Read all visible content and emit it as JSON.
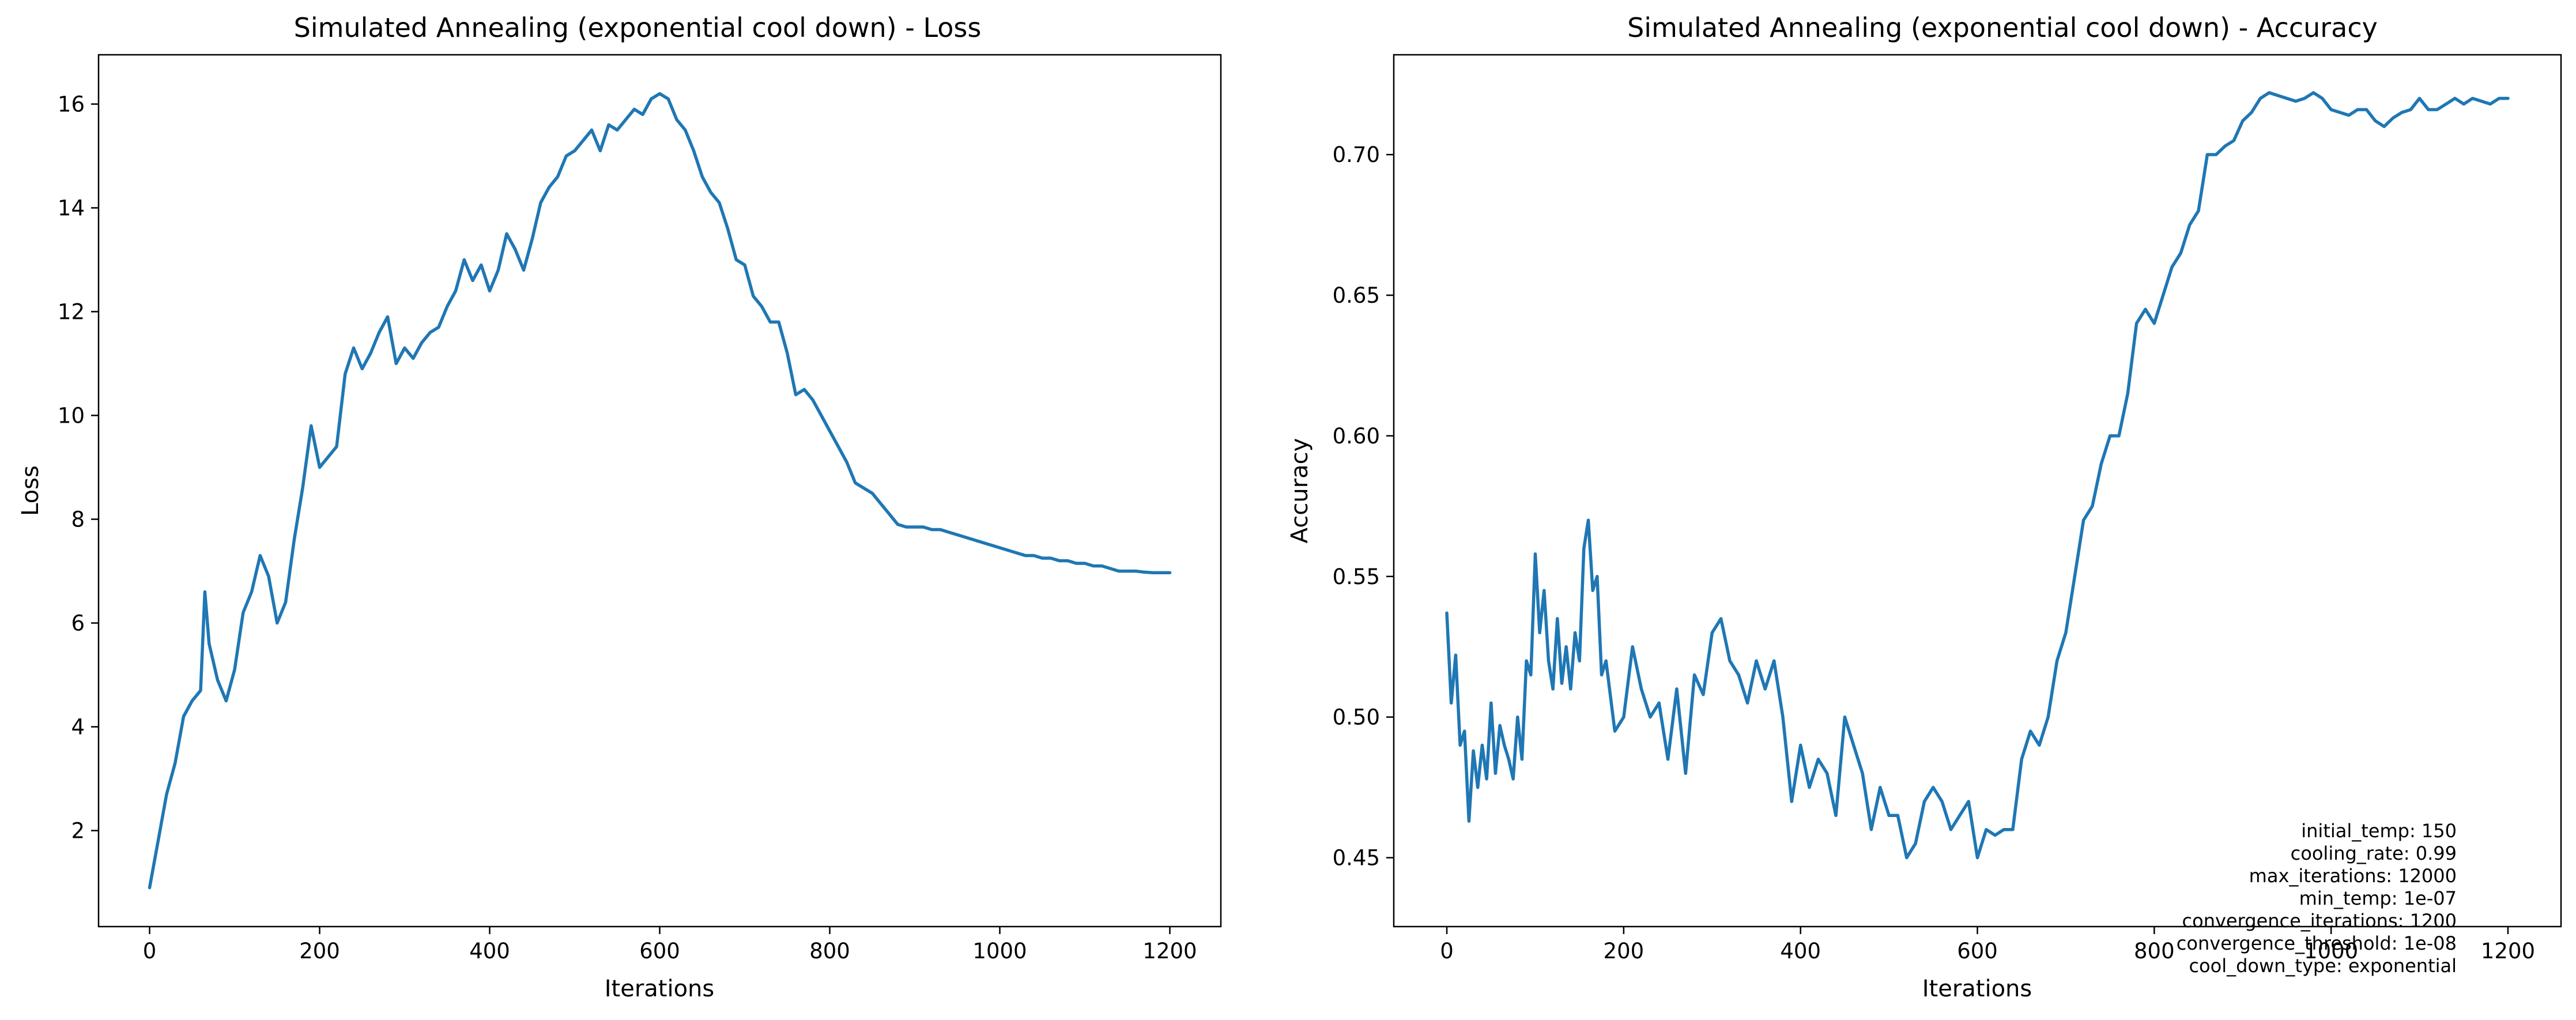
{
  "figure": {
    "annotation_lines": [
      "initial_temp: 150",
      "cooling_rate: 0.99",
      "max_iterations: 12000",
      "min_temp: 1e-07",
      "convergence_iterations: 1200",
      "convergence_threshold: 1e-08",
      "cool_down_type: exponential"
    ]
  },
  "colors": {
    "series": "#1f77b4",
    "axes": "#000000",
    "background": "#ffffff"
  },
  "chart_data": [
    {
      "type": "line",
      "title": "Simulated Annealing (exponential cool down) - Loss",
      "xlabel": "Iterations",
      "ylabel": "Loss",
      "xlim": [
        -60,
        1260
      ],
      "ylim": [
        0.15,
        16.95
      ],
      "xticks": [
        0,
        200,
        400,
        600,
        800,
        1000,
        1200
      ],
      "xtick_labels": [
        "0",
        "200",
        "400",
        "600",
        "800",
        "1000",
        "1200"
      ],
      "yticks": [
        2,
        4,
        6,
        8,
        10,
        12,
        14,
        16
      ],
      "ytick_labels": [
        "2",
        "4",
        "6",
        "8",
        "10",
        "12",
        "14",
        "16"
      ],
      "grid": false,
      "series": [
        {
          "x": [
            0,
            10,
            20,
            30,
            40,
            50,
            60,
            65,
            70,
            80,
            90,
            100,
            110,
            120,
            130,
            140,
            150,
            160,
            170,
            180,
            190,
            200,
            210,
            220,
            230,
            240,
            250,
            260,
            270,
            280,
            290,
            300,
            310,
            320,
            330,
            340,
            350,
            360,
            370,
            380,
            390,
            400,
            410,
            420,
            430,
            440,
            450,
            460,
            470,
            480,
            490,
            500,
            510,
            520,
            530,
            540,
            550,
            560,
            570,
            580,
            590,
            600,
            610,
            620,
            630,
            640,
            650,
            660,
            670,
            680,
            690,
            700,
            710,
            720,
            730,
            740,
            750,
            760,
            770,
            780,
            790,
            800,
            810,
            820,
            830,
            840,
            850,
            860,
            870,
            880,
            890,
            900,
            910,
            920,
            930,
            940,
            950,
            960,
            970,
            980,
            990,
            1000,
            1010,
            1020,
            1030,
            1040,
            1050,
            1060,
            1070,
            1080,
            1090,
            1100,
            1110,
            1120,
            1130,
            1140,
            1150,
            1160,
            1170,
            1180,
            1190,
            1200
          ],
          "y": [
            0.9,
            1.8,
            2.7,
            3.3,
            4.2,
            4.5,
            4.7,
            6.6,
            5.6,
            4.9,
            4.5,
            5.1,
            6.2,
            6.6,
            7.3,
            6.9,
            6.0,
            6.4,
            7.6,
            8.6,
            9.8,
            9.0,
            9.2,
            9.4,
            10.8,
            11.3,
            10.9,
            11.2,
            11.6,
            11.9,
            11.0,
            11.3,
            11.1,
            11.4,
            11.6,
            11.7,
            12.1,
            12.4,
            13.0,
            12.6,
            12.9,
            12.4,
            12.8,
            13.5,
            13.2,
            12.8,
            13.4,
            14.1,
            14.4,
            14.6,
            15.0,
            15.1,
            15.3,
            15.5,
            15.1,
            15.6,
            15.5,
            15.7,
            15.9,
            15.8,
            16.1,
            16.2,
            16.1,
            15.7,
            15.5,
            15.1,
            14.6,
            14.3,
            14.1,
            13.6,
            13.0,
            12.9,
            12.3,
            12.1,
            11.8,
            11.8,
            11.2,
            10.4,
            10.5,
            10.3,
            10.0,
            9.7,
            9.4,
            9.1,
            8.7,
            8.6,
            8.5,
            8.3,
            8.1,
            7.9,
            7.85,
            7.85,
            7.85,
            7.8,
            7.8,
            7.75,
            7.7,
            7.65,
            7.6,
            7.55,
            7.5,
            7.45,
            7.4,
            7.35,
            7.3,
            7.3,
            7.25,
            7.25,
            7.2,
            7.2,
            7.15,
            7.15,
            7.1,
            7.1,
            7.05,
            7.0,
            7.0,
            7.0,
            6.98,
            6.97,
            6.97,
            6.97
          ]
        }
      ]
    },
    {
      "type": "line",
      "title": "Simulated Annealing (exponential cool down) - Accuracy",
      "xlabel": "Iterations",
      "ylabel": "Accuracy",
      "xlim": [
        -60,
        1260
      ],
      "ylim": [
        0.4255,
        0.7355
      ],
      "xticks": [
        0,
        200,
        400,
        600,
        800,
        1000,
        1200
      ],
      "xtick_labels": [
        "0",
        "200",
        "400",
        "600",
        "800",
        "1000",
        "1200"
      ],
      "yticks": [
        0.45,
        0.5,
        0.55,
        0.6,
        0.65,
        0.7
      ],
      "ytick_labels": [
        "0.45",
        "0.50",
        "0.55",
        "0.60",
        "0.65",
        "0.70"
      ],
      "grid": false,
      "series": [
        {
          "x": [
            0,
            5,
            10,
            15,
            20,
            25,
            30,
            35,
            40,
            45,
            50,
            55,
            60,
            65,
            70,
            75,
            80,
            85,
            90,
            95,
            100,
            105,
            110,
            115,
            120,
            125,
            130,
            135,
            140,
            145,
            150,
            155,
            160,
            165,
            170,
            175,
            180,
            190,
            200,
            210,
            220,
            230,
            240,
            250,
            260,
            270,
            280,
            290,
            300,
            310,
            320,
            330,
            340,
            350,
            360,
            370,
            380,
            390,
            400,
            410,
            420,
            430,
            440,
            450,
            460,
            470,
            480,
            490,
            500,
            510,
            520,
            530,
            540,
            550,
            560,
            570,
            580,
            590,
            600,
            610,
            620,
            630,
            640,
            650,
            660,
            670,
            680,
            690,
            700,
            710,
            720,
            730,
            740,
            750,
            760,
            770,
            780,
            790,
            800,
            810,
            820,
            830,
            840,
            850,
            860,
            870,
            880,
            890,
            900,
            910,
            920,
            930,
            940,
            950,
            960,
            970,
            980,
            990,
            1000,
            1010,
            1020,
            1030,
            1040,
            1050,
            1060,
            1070,
            1080,
            1090,
            1100,
            1110,
            1120,
            1130,
            1140,
            1150,
            1160,
            1170,
            1180,
            1190,
            1200
          ],
          "y": [
            0.537,
            0.505,
            0.522,
            0.49,
            0.495,
            0.463,
            0.488,
            0.475,
            0.49,
            0.478,
            0.505,
            0.48,
            0.497,
            0.49,
            0.485,
            0.478,
            0.5,
            0.485,
            0.52,
            0.515,
            0.558,
            0.53,
            0.545,
            0.52,
            0.51,
            0.535,
            0.512,
            0.525,
            0.51,
            0.53,
            0.52,
            0.56,
            0.57,
            0.545,
            0.55,
            0.515,
            0.52,
            0.495,
            0.5,
            0.525,
            0.51,
            0.5,
            0.505,
            0.485,
            0.51,
            0.48,
            0.515,
            0.508,
            0.53,
            0.535,
            0.52,
            0.515,
            0.505,
            0.52,
            0.51,
            0.52,
            0.5,
            0.47,
            0.49,
            0.475,
            0.485,
            0.48,
            0.465,
            0.5,
            0.49,
            0.48,
            0.46,
            0.475,
            0.465,
            0.465,
            0.45,
            0.455,
            0.47,
            0.475,
            0.47,
            0.46,
            0.465,
            0.47,
            0.45,
            0.46,
            0.458,
            0.46,
            0.46,
            0.485,
            0.495,
            0.49,
            0.5,
            0.52,
            0.53,
            0.55,
            0.57,
            0.575,
            0.59,
            0.6,
            0.6,
            0.615,
            0.64,
            0.645,
            0.64,
            0.65,
            0.66,
            0.665,
            0.675,
            0.68,
            0.7,
            0.7,
            0.703,
            0.705,
            0.712,
            0.715,
            0.72,
            0.722,
            0.721,
            0.72,
            0.719,
            0.72,
            0.722,
            0.72,
            0.716,
            0.715,
            0.714,
            0.716,
            0.716,
            0.712,
            0.71,
            0.713,
            0.715,
            0.716,
            0.72,
            0.716,
            0.716,
            0.718,
            0.72,
            0.718,
            0.72,
            0.719,
            0.718,
            0.72,
            0.72
          ]
        }
      ]
    }
  ]
}
